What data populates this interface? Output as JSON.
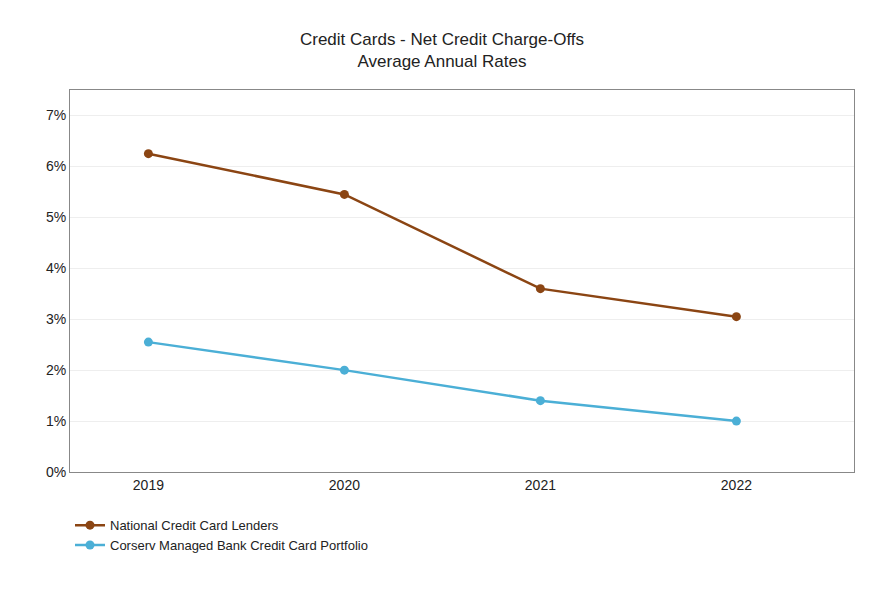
{
  "chart_data": {
    "type": "line",
    "title": "Credit Cards - Net Credit Charge-Offs",
    "subtitle": "Average Annual Rates",
    "x": [
      2019,
      2020,
      2021,
      2022
    ],
    "series": [
      {
        "name": "National Credit Card Lenders",
        "color": "#8B4513",
        "marker": "circle",
        "values": [
          0.0625,
          0.0545,
          0.036,
          0.0305
        ]
      },
      {
        "name": "Corserv Managed Bank Credit Card Portfolio",
        "color": "#4BAFD6",
        "marker": "circle",
        "values": [
          0.0255,
          0.02,
          0.014,
          0.01
        ]
      }
    ],
    "xlim": [
      2018.6,
      2022.6
    ],
    "xticks": [
      2019,
      2020,
      2021,
      2022
    ],
    "ylim": [
      0,
      0.075
    ],
    "yticks": [
      {
        "value": 0.0,
        "label": "0%"
      },
      {
        "value": 0.01,
        "label": "1%"
      },
      {
        "value": 0.02,
        "label": "2%"
      },
      {
        "value": 0.03,
        "label": "3%"
      },
      {
        "value": 0.04,
        "label": "4%"
      },
      {
        "value": 0.05,
        "label": "5%"
      },
      {
        "value": 0.06,
        "label": "6%"
      },
      {
        "value": 0.07,
        "label": "7%"
      }
    ],
    "grid": "y",
    "legend": "bottom"
  }
}
